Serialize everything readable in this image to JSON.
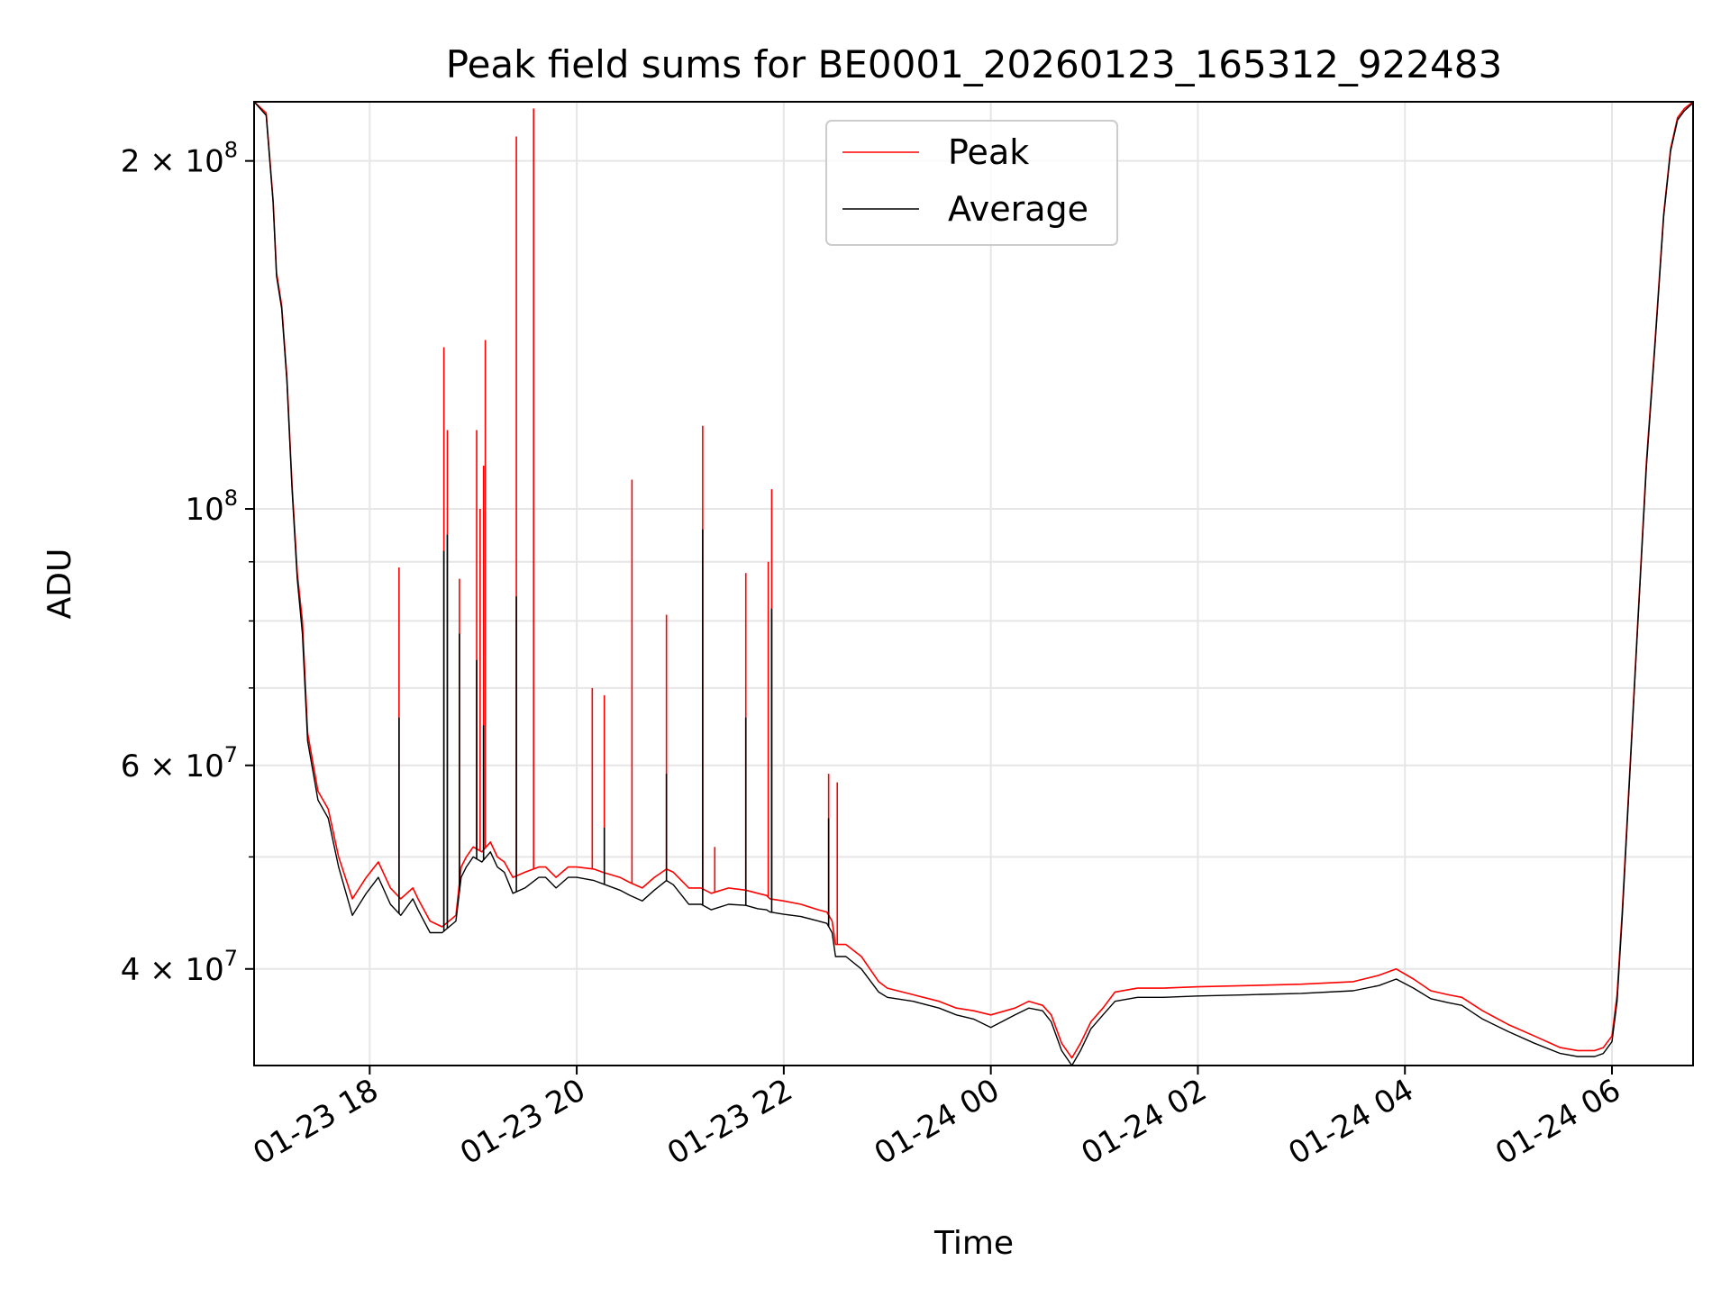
{
  "chart_data": {
    "type": "line",
    "title": "Peak field sums for BE0001_20260123_165312_922483",
    "xlabel": "Time",
    "ylabel": "ADU",
    "yscale": "log",
    "ylim": [
      33000000,
      225000000
    ],
    "xlim": [
      "2026-01-23T16:53",
      "2026-01-24T06:47"
    ],
    "grid": true,
    "legend_position": "top-center",
    "x_ticks": [
      {
        "value": "2026-01-23T18:00",
        "label": "01-23 18"
      },
      {
        "value": "2026-01-23T20:00",
        "label": "01-23 20"
      },
      {
        "value": "2026-01-23T22:00",
        "label": "01-23 22"
      },
      {
        "value": "2026-01-24T00:00",
        "label": "01-24 00"
      },
      {
        "value": "2026-01-24T02:00",
        "label": "01-24 02"
      },
      {
        "value": "2026-01-24T04:00",
        "label": "01-24 04"
      },
      {
        "value": "2026-01-24T06:00",
        "label": "01-24 06"
      }
    ],
    "y_ticks": [
      {
        "value": 40000000,
        "mantissa": "4",
        "exp": "7"
      },
      {
        "value": 60000000,
        "mantissa": "6",
        "exp": "7"
      },
      {
        "value": 100000000,
        "mantissa": "",
        "exp": "8"
      },
      {
        "value": 200000000,
        "mantissa": "2",
        "exp": "8"
      }
    ],
    "y_minor_ticks": [
      50000000,
      70000000,
      80000000,
      90000000
    ],
    "series": [
      {
        "name": "Peak",
        "color": "#ff0000",
        "x": [
          "2026-01-23T16:53",
          "2026-01-23T17:00",
          "2026-01-23T17:04",
          "2026-01-23T17:06",
          "2026-01-23T17:09",
          "2026-01-23T17:12",
          "2026-01-23T17:15",
          "2026-01-23T17:18",
          "2026-01-23T17:21",
          "2026-01-23T17:24",
          "2026-01-23T17:30",
          "2026-01-23T17:36",
          "2026-01-23T17:42",
          "2026-01-23T17:50",
          "2026-01-23T17:58",
          "2026-01-23T18:05",
          "2026-01-23T18:12",
          "2026-01-23T18:18",
          "2026-01-23T18:25",
          "2026-01-23T18:28",
          "2026-01-23T18:35",
          "2026-01-23T18:42",
          "2026-01-23T18:50",
          "2026-01-23T18:53",
          "2026-01-23T18:56",
          "2026-01-23T19:00",
          "2026-01-23T19:05",
          "2026-01-23T19:10",
          "2026-01-23T19:14",
          "2026-01-23T19:18",
          "2026-01-23T19:23",
          "2026-01-23T19:30",
          "2026-01-23T19:38",
          "2026-01-23T19:42",
          "2026-01-23T19:45",
          "2026-01-23T19:48",
          "2026-01-23T19:55",
          "2026-01-23T20:00",
          "2026-01-23T20:10",
          "2026-01-23T20:15",
          "2026-01-23T20:25",
          "2026-01-23T20:31",
          "2026-01-23T20:38",
          "2026-01-23T20:45",
          "2026-01-23T20:52",
          "2026-01-23T20:56",
          "2026-01-23T21:05",
          "2026-01-23T21:12",
          "2026-01-23T21:18",
          "2026-01-23T21:28",
          "2026-01-23T21:38",
          "2026-01-23T21:45",
          "2026-01-23T21:50",
          "2026-01-23T21:52",
          "2026-01-23T22:00",
          "2026-01-23T22:10",
          "2026-01-23T22:20",
          "2026-01-23T22:25",
          "2026-01-23T22:28",
          "2026-01-23T22:30",
          "2026-01-23T22:36",
          "2026-01-23T22:45",
          "2026-01-23T22:55",
          "2026-01-23T23:00",
          "2026-01-23T23:15",
          "2026-01-23T23:30",
          "2026-01-23T23:40",
          "2026-01-23T23:50",
          "2026-01-24T00:00",
          "2026-01-24T00:14",
          "2026-01-24T00:22",
          "2026-01-24T00:30",
          "2026-01-24T00:35",
          "2026-01-24T00:41",
          "2026-01-24T00:47",
          "2026-01-24T00:52",
          "2026-01-24T00:58",
          "2026-01-24T01:05",
          "2026-01-24T01:12",
          "2026-01-24T01:25",
          "2026-01-24T01:40",
          "2026-01-24T02:00",
          "2026-01-24T02:30",
          "2026-01-24T03:00",
          "2026-01-24T03:30",
          "2026-01-24T03:45",
          "2026-01-24T03:55",
          "2026-01-24T04:05",
          "2026-01-24T04:15",
          "2026-01-24T04:25",
          "2026-01-24T04:33",
          "2026-01-24T04:45",
          "2026-01-24T05:00",
          "2026-01-24T05:15",
          "2026-01-24T05:30",
          "2026-01-24T05:40",
          "2026-01-24T05:50",
          "2026-01-24T05:55",
          "2026-01-24T06:00",
          "2026-01-24T06:03",
          "2026-01-24T06:06",
          "2026-01-24T06:10",
          "2026-01-24T06:15",
          "2026-01-24T06:20",
          "2026-01-24T06:25",
          "2026-01-24T06:30",
          "2026-01-24T06:34",
          "2026-01-24T06:38",
          "2026-01-24T06:42",
          "2026-01-24T06:47"
        ],
        "values": [
          225000000,
          220000000,
          185000000,
          160000000,
          150000000,
          130000000,
          105000000,
          88000000,
          80000000,
          64000000,
          57000000,
          55000000,
          50000000,
          46000000,
          48000000,
          49500000,
          47000000,
          46000000,
          47000000,
          46000000,
          44000000,
          43500000,
          44500000,
          49000000,
          50000000,
          51000000,
          50500000,
          51500000,
          50000000,
          49500000,
          48000000,
          48500000,
          49000000,
          49000000,
          48500000,
          48000000,
          49000000,
          49000000,
          48800000,
          48500000,
          48000000,
          47500000,
          47000000,
          48000000,
          48800000,
          48500000,
          47000000,
          47000000,
          46500000,
          47000000,
          46800000,
          46500000,
          46300000,
          46000000,
          45800000,
          45500000,
          45000000,
          44800000,
          44000000,
          42000000,
          42000000,
          41000000,
          39000000,
          38500000,
          38000000,
          37500000,
          37000000,
          36800000,
          36500000,
          37000000,
          37500000,
          37200000,
          36500000,
          34500000,
          33500000,
          34500000,
          36000000,
          37000000,
          38200000,
          38500000,
          38500000,
          38600000,
          38700000,
          38800000,
          39000000,
          39500000,
          40000000,
          39200000,
          38300000,
          38000000,
          37800000,
          36800000,
          35800000,
          35000000,
          34200000,
          34000000,
          34000000,
          34200000,
          35000000,
          38000000,
          45000000,
          58000000,
          80000000,
          110000000,
          140000000,
          180000000,
          205000000,
          218000000,
          222000000,
          225000000
        ]
      },
      {
        "name": "Average",
        "color": "#000000",
        "x": [
          "2026-01-23T16:53",
          "2026-01-23T17:00",
          "2026-01-23T17:04",
          "2026-01-23T17:06",
          "2026-01-23T17:09",
          "2026-01-23T17:12",
          "2026-01-23T17:15",
          "2026-01-23T17:18",
          "2026-01-23T17:21",
          "2026-01-23T17:24",
          "2026-01-23T17:30",
          "2026-01-23T17:36",
          "2026-01-23T17:42",
          "2026-01-23T17:50",
          "2026-01-23T17:58",
          "2026-01-23T18:05",
          "2026-01-23T18:12",
          "2026-01-23T18:18",
          "2026-01-23T18:25",
          "2026-01-23T18:28",
          "2026-01-23T18:35",
          "2026-01-23T18:42",
          "2026-01-23T18:50",
          "2026-01-23T18:53",
          "2026-01-23T18:56",
          "2026-01-23T19:00",
          "2026-01-23T19:05",
          "2026-01-23T19:10",
          "2026-01-23T19:14",
          "2026-01-23T19:18",
          "2026-01-23T19:23",
          "2026-01-23T19:30",
          "2026-01-23T19:38",
          "2026-01-23T19:42",
          "2026-01-23T19:45",
          "2026-01-23T19:48",
          "2026-01-23T19:55",
          "2026-01-23T20:00",
          "2026-01-23T20:10",
          "2026-01-23T20:15",
          "2026-01-23T20:25",
          "2026-01-23T20:31",
          "2026-01-23T20:38",
          "2026-01-23T20:45",
          "2026-01-23T20:52",
          "2026-01-23T20:56",
          "2026-01-23T21:05",
          "2026-01-23T21:12",
          "2026-01-23T21:18",
          "2026-01-23T21:28",
          "2026-01-23T21:38",
          "2026-01-23T21:45",
          "2026-01-23T21:50",
          "2026-01-23T21:52",
          "2026-01-23T22:00",
          "2026-01-23T22:10",
          "2026-01-23T22:20",
          "2026-01-23T22:25",
          "2026-01-23T22:28",
          "2026-01-23T22:30",
          "2026-01-23T22:36",
          "2026-01-23T22:45",
          "2026-01-23T22:55",
          "2026-01-23T23:00",
          "2026-01-23T23:15",
          "2026-01-23T23:30",
          "2026-01-23T23:40",
          "2026-01-23T23:50",
          "2026-01-24T00:00",
          "2026-01-24T00:14",
          "2026-01-24T00:22",
          "2026-01-24T00:30",
          "2026-01-24T00:35",
          "2026-01-24T00:41",
          "2026-01-24T00:47",
          "2026-01-24T00:52",
          "2026-01-24T00:58",
          "2026-01-24T01:05",
          "2026-01-24T01:12",
          "2026-01-24T01:25",
          "2026-01-24T01:40",
          "2026-01-24T02:00",
          "2026-01-24T02:30",
          "2026-01-24T03:00",
          "2026-01-24T03:30",
          "2026-01-24T03:45",
          "2026-01-24T03:55",
          "2026-01-24T04:05",
          "2026-01-24T04:15",
          "2026-01-24T04:25",
          "2026-01-24T04:33",
          "2026-01-24T04:45",
          "2026-01-24T05:00",
          "2026-01-24T05:15",
          "2026-01-24T05:30",
          "2026-01-24T05:40",
          "2026-01-24T05:50",
          "2026-01-24T05:55",
          "2026-01-24T06:00",
          "2026-01-24T06:03",
          "2026-01-24T06:06",
          "2026-01-24T06:10",
          "2026-01-24T06:15",
          "2026-01-24T06:20",
          "2026-01-24T06:25",
          "2026-01-24T06:30",
          "2026-01-24T06:34",
          "2026-01-24T06:38",
          "2026-01-24T06:42",
          "2026-01-24T06:47"
        ],
        "values": [
          225000000,
          219000000,
          184000000,
          159000000,
          149000000,
          129000000,
          104000000,
          87000000,
          78000000,
          63000000,
          56000000,
          54000000,
          49000000,
          44500000,
          46500000,
          48000000,
          45500000,
          44500000,
          46000000,
          45000000,
          43000000,
          43000000,
          44000000,
          48000000,
          49000000,
          50000000,
          49500000,
          50500000,
          49000000,
          48500000,
          46500000,
          47000000,
          48000000,
          48000000,
          47500000,
          47000000,
          48000000,
          48000000,
          47700000,
          47400000,
          46800000,
          46300000,
          45800000,
          46800000,
          47700000,
          47300000,
          45500000,
          45500000,
          45000000,
          45500000,
          45400000,
          45100000,
          45000000,
          44800000,
          44600000,
          44400000,
          44000000,
          43800000,
          43000000,
          41000000,
          41000000,
          40000000,
          38200000,
          37800000,
          37500000,
          37000000,
          36500000,
          36200000,
          35600000,
          36500000,
          37000000,
          36800000,
          36000000,
          34000000,
          33000000,
          34000000,
          35500000,
          36500000,
          37500000,
          37800000,
          37800000,
          37900000,
          38000000,
          38100000,
          38300000,
          38700000,
          39200000,
          38500000,
          37700000,
          37400000,
          37200000,
          36200000,
          35300000,
          34500000,
          33800000,
          33600000,
          33600000,
          33800000,
          34600000,
          37500000,
          44500000,
          57500000,
          79500000,
          109000000,
          139000000,
          179000000,
          204000000,
          217000000,
          221000000,
          224500000
        ]
      }
    ],
    "spikes": [
      {
        "series": "Peak",
        "x": "2026-01-23T18:17",
        "value": 89000000
      },
      {
        "series": "Peak",
        "x": "2026-01-23T18:43",
        "value": 138000000
      },
      {
        "series": "Peak",
        "x": "2026-01-23T18:45",
        "value": 117000000
      },
      {
        "series": "Peak",
        "x": "2026-01-23T18:52",
        "value": 87000000
      },
      {
        "series": "Peak",
        "x": "2026-01-23T19:02",
        "value": 117000000
      },
      {
        "series": "Peak",
        "x": "2026-01-23T19:04",
        "value": 100000000
      },
      {
        "series": "Peak",
        "x": "2026-01-23T19:06",
        "value": 109000000
      },
      {
        "series": "Peak",
        "x": "2026-01-23T19:07",
        "value": 140000000
      },
      {
        "series": "Peak",
        "x": "2026-01-23T19:25",
        "value": 210000000
      },
      {
        "series": "Peak",
        "x": "2026-01-23T19:35",
        "value": 222000000
      },
      {
        "series": "Peak",
        "x": "2026-01-23T20:09",
        "value": 70000000
      },
      {
        "series": "Peak",
        "x": "2026-01-23T20:16",
        "value": 69000000
      },
      {
        "series": "Peak",
        "x": "2026-01-23T20:32",
        "value": 106000000
      },
      {
        "series": "Peak",
        "x": "2026-01-23T20:52",
        "value": 81000000
      },
      {
        "series": "Peak",
        "x": "2026-01-23T21:13",
        "value": 118000000
      },
      {
        "series": "Peak",
        "x": "2026-01-23T21:20",
        "value": 51000000
      },
      {
        "series": "Peak",
        "x": "2026-01-23T21:38",
        "value": 88000000
      },
      {
        "series": "Peak",
        "x": "2026-01-23T21:51",
        "value": 90000000
      },
      {
        "series": "Peak",
        "x": "2026-01-23T21:53",
        "value": 104000000
      },
      {
        "series": "Peak",
        "x": "2026-01-23T22:26",
        "value": 59000000
      },
      {
        "series": "Peak",
        "x": "2026-01-23T22:31",
        "value": 58000000
      },
      {
        "series": "Average",
        "x": "2026-01-23T18:17",
        "value": 66000000
      },
      {
        "series": "Average",
        "x": "2026-01-23T18:43",
        "value": 92000000
      },
      {
        "series": "Average",
        "x": "2026-01-23T18:45",
        "value": 95000000
      },
      {
        "series": "Average",
        "x": "2026-01-23T18:52",
        "value": 78000000
      },
      {
        "series": "Average",
        "x": "2026-01-23T19:02",
        "value": 74000000
      },
      {
        "series": "Average",
        "x": "2026-01-23T19:06",
        "value": 65000000
      },
      {
        "series": "Average",
        "x": "2026-01-23T19:25",
        "value": 84000000
      },
      {
        "series": "Average",
        "x": "2026-01-23T20:16",
        "value": 53000000
      },
      {
        "series": "Average",
        "x": "2026-01-23T20:52",
        "value": 59000000
      },
      {
        "series": "Average",
        "x": "2026-01-23T21:13",
        "value": 96000000
      },
      {
        "series": "Average",
        "x": "2026-01-23T21:38",
        "value": 66000000
      },
      {
        "series": "Average",
        "x": "2026-01-23T21:53",
        "value": 82000000
      },
      {
        "series": "Average",
        "x": "2026-01-23T22:26",
        "value": 54000000
      }
    ]
  }
}
